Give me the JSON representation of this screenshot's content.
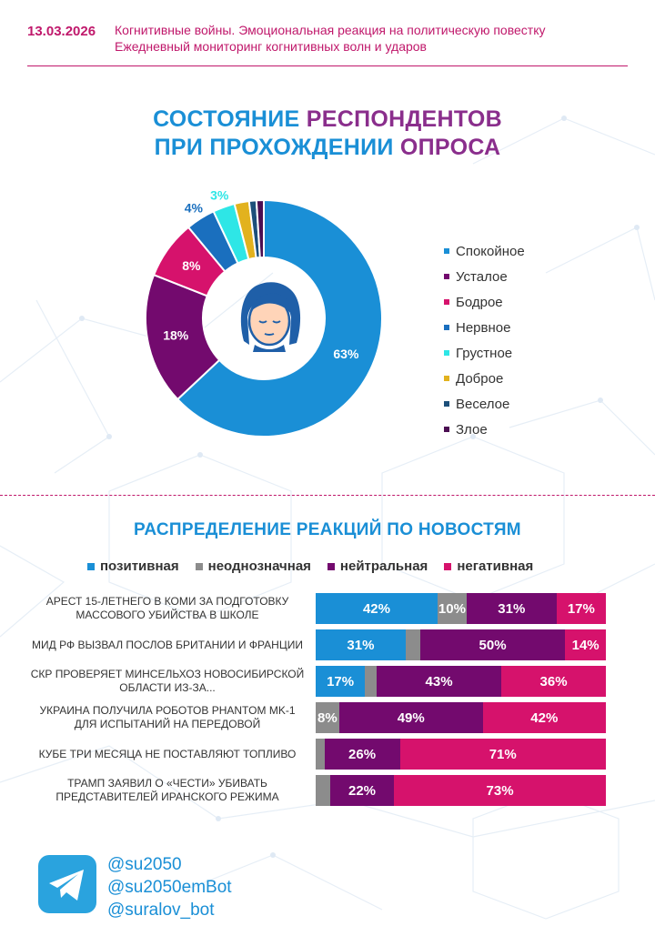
{
  "header": {
    "date": "13.03.2026",
    "line1": "Когнитивные войны. Эмоциональная реакция на политическую повестку",
    "line2": "Ежедневный мониторинг когнитивных волн и ударов"
  },
  "colors": {
    "blue": "#1a8fd6",
    "gray": "#8c8c8c",
    "purple": "#730a6e",
    "pink": "#d6126c",
    "magenta": "#c0186b",
    "navy": "#1c5d8a",
    "cyan": "#2ee6e6",
    "gold": "#e2b21e",
    "darkpurple": "#4b0e52"
  },
  "chart_data": [
    {
      "type": "pie",
      "title_parts": [
        "СОСТОЯНИЕ РЕСПОНДЕНТОВ",
        "ПРИ ПРОХОЖДЕНИИ ОПРОСА"
      ],
      "slices": [
        {
          "label": "Спокойное",
          "value": 63,
          "color": "#1a8fd6",
          "text": "63%"
        },
        {
          "label": "Усталое",
          "value": 18,
          "color": "#730a6e",
          "text": "18%"
        },
        {
          "label": "Бодрое",
          "value": 8,
          "color": "#d6126c",
          "text": "8%"
        },
        {
          "label": "Нервное",
          "value": 4,
          "color": "#1a6fbe",
          "text": "4%"
        },
        {
          "label": "Грустное",
          "value": 3,
          "color": "#2ee6e6",
          "text": "3%"
        },
        {
          "label": "Доброе",
          "value": 2,
          "color": "#e2b21e",
          "text": ""
        },
        {
          "label": "Веселое",
          "value": 1,
          "color": "#1c4f7a",
          "text": ""
        },
        {
          "label": "Злое",
          "value": 1,
          "color": "#4b0e52",
          "text": ""
        }
      ]
    },
    {
      "type": "bar",
      "title": "РАСПРЕДЕЛЕНИЕ РЕАКЦИЙ ПО НОВОСТЯМ",
      "series": [
        {
          "name": "позитивная",
          "color": "#1a8fd6"
        },
        {
          "name": "неоднозначная",
          "color": "#8c8c8c"
        },
        {
          "name": "нейтральная",
          "color": "#730a6e"
        },
        {
          "name": "негативная",
          "color": "#d6126c"
        }
      ],
      "rows": [
        {
          "label": "АРЕСТ 15-ЛЕТНЕГО В КОМИ ЗА ПОДГОТОВКУ МАССОВОГО УБИЙСТВА В ШКОЛЕ",
          "values": [
            42,
            10,
            31,
            17
          ]
        },
        {
          "label": "МИД РФ ВЫЗВАЛ ПОСЛОВ БРИТАНИИ И ФРАНЦИИ",
          "values": [
            31,
            5,
            50,
            14
          ]
        },
        {
          "label": "СКР ПРОВЕРЯЕТ МИНСЕЛЬХОЗ НОВОСИБИРСКОЙ ОБЛАСТИ ИЗ-ЗА...",
          "values": [
            17,
            4,
            43,
            36
          ]
        },
        {
          "label": "УКРАИНА ПОЛУЧИЛА РОБОТОВ PHANTOM MK-1 ДЛЯ ИСПЫТАНИЙ НА ПЕРЕДОВОЙ",
          "values": [
            0,
            8,
            49,
            42
          ]
        },
        {
          "label": "КУБЕ ТРИ МЕСЯЦА НЕ ПОСТАВЛЯЮТ ТОПЛИВО",
          "values": [
            0,
            3,
            26,
            71
          ]
        },
        {
          "label": "ТРАМП ЗАЯВИЛ О «ЧЕСТИ» УБИВАТЬ ПРЕДСТАВИТЕЛЕЙ ИРАНСКОГО РЕЖИМА",
          "values": [
            0,
            5,
            22,
            73
          ]
        }
      ]
    }
  ],
  "footer": {
    "links": [
      "@su2050",
      "@su2050emBot",
      "@suralov_bot"
    ],
    "icon": "telegram-icon"
  }
}
